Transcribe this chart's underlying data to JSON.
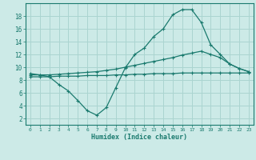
{
  "background_color": "#cceae7",
  "grid_color": "#aad4d0",
  "line_color": "#1a7a6e",
  "x_label": "Humidex (Indice chaleur)",
  "xlim": [
    -0.5,
    23.5
  ],
  "ylim": [
    1,
    20
  ],
  "yticks": [
    2,
    4,
    6,
    8,
    10,
    12,
    14,
    16,
    18
  ],
  "xticks": [
    0,
    1,
    2,
    3,
    4,
    5,
    6,
    7,
    8,
    9,
    10,
    11,
    12,
    13,
    14,
    15,
    16,
    17,
    18,
    19,
    20,
    21,
    22,
    23
  ],
  "line1_x": [
    0,
    1,
    2,
    3,
    4,
    5,
    6,
    7,
    8,
    9,
    10,
    11,
    12,
    13,
    14,
    15,
    16,
    17,
    18,
    19,
    20,
    21,
    22,
    23
  ],
  "line1_y": [
    9.0,
    8.8,
    8.5,
    7.3,
    6.3,
    4.8,
    3.2,
    2.5,
    3.7,
    6.8,
    9.9,
    12.0,
    13.0,
    14.8,
    16.0,
    18.2,
    19.0,
    19.0,
    17.0,
    13.5,
    12.0,
    10.5,
    9.8,
    9.3
  ],
  "line2_x": [
    0,
    1,
    2,
    3,
    4,
    5,
    6,
    7,
    8,
    9,
    10,
    11,
    12,
    13,
    14,
    15,
    16,
    17,
    18,
    19,
    20,
    21,
    22,
    23
  ],
  "line2_y": [
    8.8,
    8.8,
    8.8,
    8.9,
    9.0,
    9.1,
    9.2,
    9.3,
    9.5,
    9.7,
    10.0,
    10.3,
    10.6,
    10.9,
    11.2,
    11.5,
    11.9,
    12.2,
    12.5,
    12.0,
    11.5,
    10.5,
    9.8,
    9.3
  ],
  "line3_x": [
    0,
    1,
    2,
    3,
    4,
    5,
    6,
    7,
    8,
    9,
    10,
    11,
    12,
    13,
    14,
    15,
    16,
    17,
    18,
    19,
    20,
    21,
    22,
    23
  ],
  "line3_y": [
    8.5,
    8.5,
    8.5,
    8.6,
    8.6,
    8.6,
    8.7,
    8.7,
    8.7,
    8.8,
    8.8,
    8.9,
    8.9,
    9.0,
    9.0,
    9.0,
    9.1,
    9.1,
    9.1,
    9.1,
    9.1,
    9.1,
    9.1,
    9.1
  ]
}
